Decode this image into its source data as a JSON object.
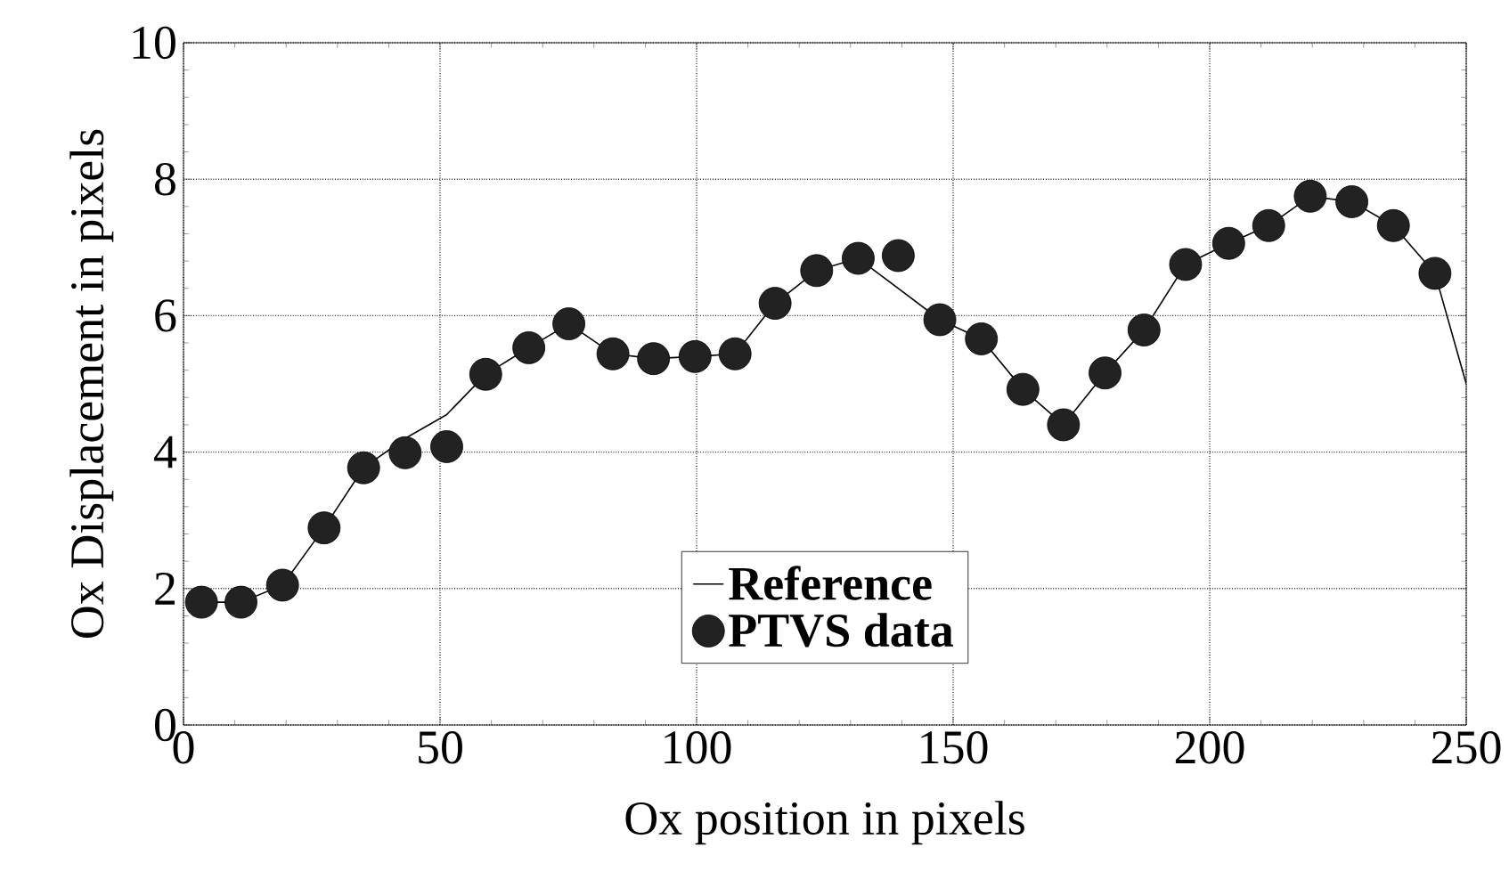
{
  "chart_data": {
    "type": "scatter",
    "xlabel": "Ox position in pixels",
    "ylabel": "Ox Displacement in pixels",
    "xlim": [
      0,
      250
    ],
    "ylim": [
      0,
      10
    ],
    "xticks": [
      0,
      50,
      100,
      150,
      200,
      250
    ],
    "yticks": [
      0,
      2,
      4,
      6,
      8,
      10
    ],
    "grid": true,
    "legend": "bottom",
    "series": [
      {
        "name": "Reference",
        "type": "line",
        "color": "#000000",
        "marker": "none",
        "line_style": "solid",
        "x": [
          3.5,
          11.2,
          19.3,
          27.4,
          35.1,
          43.2,
          51.3,
          58.9,
          67.3,
          75.1,
          83.7,
          91.6,
          99.7,
          107.5,
          115.3,
          123.4,
          131.5,
          147.4,
          155.5,
          163.6,
          171.5,
          179.6,
          187.2,
          195.3,
          203.7,
          211.5,
          219.6,
          227.7,
          235.8,
          243.9,
          250
        ],
        "values": [
          1.8,
          1.8,
          2.05,
          2.89,
          3.77,
          4.2,
          4.55,
          5.14,
          5.53,
          5.88,
          5.44,
          5.37,
          5.4,
          5.44,
          6.18,
          6.66,
          6.84,
          5.94,
          5.66,
          4.92,
          4.4,
          5.16,
          5.79,
          6.75,
          7.06,
          7.32,
          7.75,
          7.67,
          7.32,
          6.62,
          5.0
        ]
      },
      {
        "name": "PTVS data",
        "color": "#222222",
        "marker": "circle",
        "x": [
          3.5,
          11.2,
          19.3,
          27.4,
          35.1,
          43.2,
          51.3,
          58.9,
          67.3,
          75.1,
          83.7,
          91.6,
          99.7,
          107.5,
          115.3,
          123.4,
          131.5,
          139.3,
          147.4,
          155.5,
          163.6,
          171.5,
          179.6,
          187.2,
          195.3,
          203.7,
          211.5,
          219.6,
          227.7,
          235.8,
          243.9
        ],
        "values": [
          1.8,
          1.8,
          2.05,
          2.89,
          3.77,
          3.99,
          4.08,
          5.14,
          5.53,
          5.88,
          5.44,
          5.37,
          5.4,
          5.44,
          6.18,
          6.66,
          6.84,
          6.88,
          5.94,
          5.66,
          4.92,
          4.4,
          5.16,
          5.79,
          6.75,
          7.06,
          7.32,
          7.75,
          7.67,
          7.32,
          6.62
        ]
      }
    ]
  }
}
